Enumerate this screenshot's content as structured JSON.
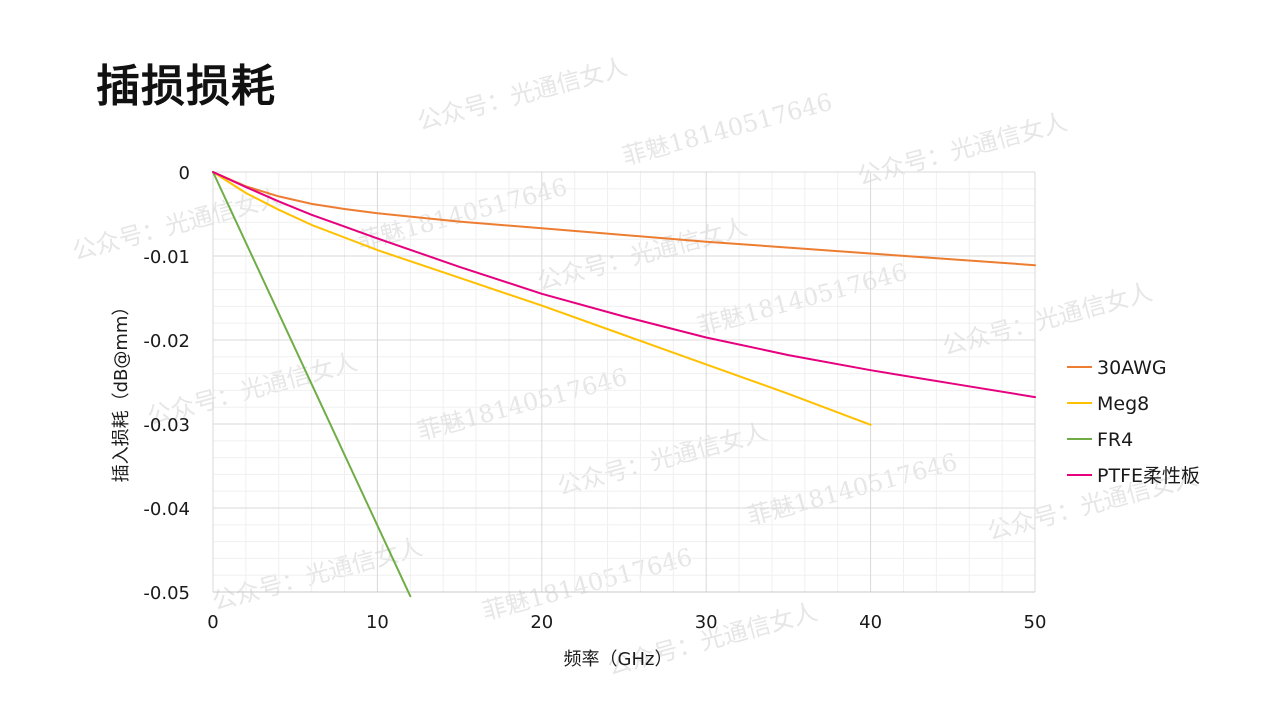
{
  "page": {
    "title": "插损损耗"
  },
  "watermarks": [
    "公众号：光通信女人",
    "菲魅18140517646"
  ],
  "chart_data": {
    "type": "line",
    "title": "",
    "xlabel": "频率（GHz）",
    "ylabel": "插入损耗（dB@mm）",
    "xlim": [
      0,
      50
    ],
    "ylim": [
      -0.05,
      0
    ],
    "xticks": [
      0,
      10,
      20,
      30,
      40,
      50
    ],
    "yticks": [
      0,
      -0.01,
      -0.02,
      -0.03,
      -0.04,
      -0.05
    ],
    "xtick_labels": [
      "0",
      "10",
      "20",
      "30",
      "40",
      "50"
    ],
    "ytick_labels": [
      "0",
      "-0.01",
      "-0.02",
      "-0.03",
      "-0.04",
      "-0.05"
    ],
    "grid": true,
    "legend_position": "right",
    "series": [
      {
        "name": "30AWG",
        "color": "#ED7D31",
        "x": [
          0,
          2,
          4,
          6,
          8,
          10,
          15,
          20,
          25,
          30,
          35,
          40,
          45,
          50
        ],
        "y": [
          0,
          -0.0017,
          -0.0029,
          -0.0038,
          -0.0044,
          -0.0049,
          -0.0059,
          -0.0067,
          -0.0075,
          -0.0083,
          -0.009,
          -0.0097,
          -0.0104,
          -0.0111
        ]
      },
      {
        "name": "Meg8",
        "color": "#FFC000",
        "x": [
          0,
          2,
          4,
          6,
          8,
          10,
          15,
          20,
          25,
          30,
          35,
          40
        ],
        "y": [
          0,
          -0.0025,
          -0.0045,
          -0.0063,
          -0.0078,
          -0.0093,
          -0.0126,
          -0.0159,
          -0.0194,
          -0.0229,
          -0.0264,
          -0.0301
        ]
      },
      {
        "name": "FR4",
        "color": "#70AD47",
        "x": [
          0,
          12
        ],
        "y": [
          0,
          -0.0505
        ]
      },
      {
        "name": "PTFE柔性板",
        "color": "#E6007E",
        "x": [
          0,
          2,
          4,
          6,
          8,
          10,
          15,
          20,
          25,
          30,
          35,
          40,
          45,
          50
        ],
        "y": [
          0,
          -0.0018,
          -0.0035,
          -0.0051,
          -0.0065,
          -0.0079,
          -0.0113,
          -0.0145,
          -0.0172,
          -0.0197,
          -0.0218,
          -0.0236,
          -0.0252,
          -0.0268
        ]
      }
    ]
  }
}
